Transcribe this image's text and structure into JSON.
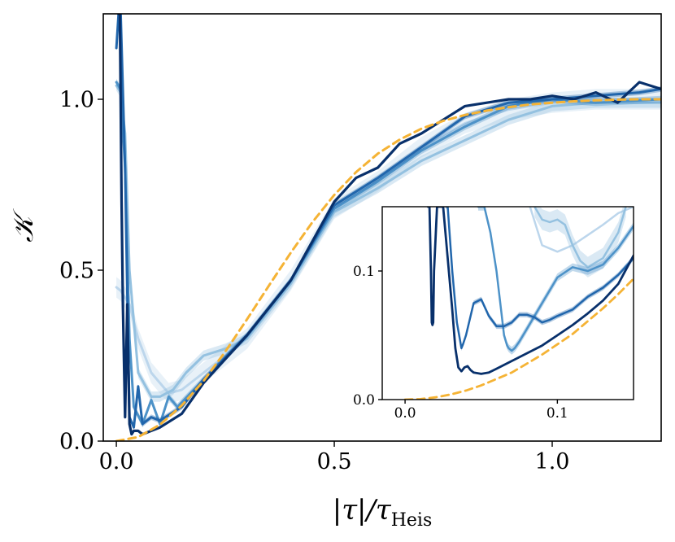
{
  "chart_data": [
    {
      "type": "line",
      "panel": "main",
      "xlabel": "|τ|/τ",
      "xlabel_sub": "Heis",
      "ylabel": "𝒦",
      "xlim": [
        -0.03,
        1.25
      ],
      "ylim": [
        0.0,
        1.25
      ],
      "xticks": [
        0.0,
        0.5,
        1.0
      ],
      "xtick_labels": [
        "0.0",
        "0.5",
        "1.0"
      ],
      "yticks": [
        0.0,
        0.5,
        1.0
      ],
      "ytick_labels": [
        "0.0",
        "0.5",
        "1.0"
      ],
      "grid": false,
      "series": [
        {
          "name": "series-1",
          "color": "#bcd6ec",
          "width": 3,
          "band": 0.03,
          "x": [
            0.0,
            0.01,
            0.03,
            0.05,
            0.08,
            0.1,
            0.12,
            0.15,
            0.2,
            0.3,
            0.4,
            0.5,
            0.6,
            0.7,
            0.8,
            0.9,
            1.0,
            1.1,
            1.25
          ],
          "y": [
            0.45,
            0.44,
            0.4,
            0.3,
            0.2,
            0.17,
            0.14,
            0.15,
            0.2,
            0.3,
            0.47,
            0.68,
            0.76,
            0.86,
            0.93,
            0.97,
            0.99,
            1.0,
            1.0
          ]
        },
        {
          "name": "series-2",
          "color": "#94c1e0",
          "width": 3,
          "band": 0.015,
          "x": [
            0.0,
            0.01,
            0.02,
            0.03,
            0.05,
            0.08,
            0.1,
            0.13,
            0.16,
            0.2,
            0.25,
            0.3,
            0.4,
            0.5,
            0.6,
            0.7,
            0.8,
            0.9,
            1.0,
            1.1,
            1.25
          ],
          "y": [
            1.04,
            1.02,
            0.9,
            0.5,
            0.2,
            0.13,
            0.13,
            0.15,
            0.2,
            0.25,
            0.27,
            0.3,
            0.46,
            0.67,
            0.74,
            0.82,
            0.88,
            0.94,
            0.98,
            0.99,
            0.99
          ]
        },
        {
          "name": "series-3",
          "color": "#4d92c8",
          "width": 3,
          "band": 0.01,
          "x": [
            0.0,
            0.01,
            0.02,
            0.03,
            0.04,
            0.06,
            0.08,
            0.1,
            0.12,
            0.14,
            0.2,
            0.3,
            0.4,
            0.5,
            0.6,
            0.7,
            0.8,
            0.9,
            1.0,
            1.1,
            1.25
          ],
          "y": [
            1.05,
            1.03,
            0.8,
            0.3,
            0.1,
            0.05,
            0.12,
            0.05,
            0.13,
            0.1,
            0.18,
            0.31,
            0.47,
            0.68,
            0.76,
            0.85,
            0.92,
            0.98,
            1.0,
            0.99,
            1.0
          ]
        },
        {
          "name": "series-4",
          "color": "#2166ac",
          "width": 3,
          "band": 0.008,
          "x": [
            0.0,
            0.005,
            0.01,
            0.02,
            0.03,
            0.04,
            0.05,
            0.06,
            0.07,
            0.08,
            0.1,
            0.15,
            0.2,
            0.3,
            0.4,
            0.5,
            0.6,
            0.7,
            0.8,
            0.9,
            1.0,
            1.1,
            1.2,
            1.25
          ],
          "y": [
            1.15,
            1.25,
            1.25,
            0.8,
            0.07,
            0.04,
            0.16,
            0.05,
            0.06,
            0.07,
            0.06,
            0.1,
            0.18,
            0.31,
            0.47,
            0.69,
            0.77,
            0.86,
            0.95,
            0.99,
            1.0,
            1.01,
            1.02,
            1.03
          ]
        },
        {
          "name": "series-5",
          "color": "#08306b",
          "width": 3.2,
          "band": 0,
          "x": [
            0.005,
            0.008,
            0.012,
            0.015,
            0.02,
            0.025,
            0.03,
            0.035,
            0.04,
            0.05,
            0.06,
            0.07,
            0.08,
            0.1,
            0.15,
            0.2,
            0.3,
            0.4,
            0.5,
            0.55,
            0.6,
            0.65,
            0.7,
            0.75,
            0.8,
            0.85,
            0.9,
            0.95,
            1.0,
            1.05,
            1.1,
            1.15,
            1.2,
            1.25
          ],
          "y": [
            1.25,
            1.25,
            0.7,
            0.4,
            0.07,
            0.4,
            0.05,
            0.02,
            0.03,
            0.03,
            0.02,
            0.025,
            0.03,
            0.04,
            0.08,
            0.17,
            0.31,
            0.47,
            0.7,
            0.77,
            0.8,
            0.87,
            0.9,
            0.94,
            0.98,
            0.99,
            1.0,
            1.0,
            1.01,
            1.0,
            1.02,
            0.99,
            1.05,
            1.03
          ]
        },
        {
          "name": "reference-curve",
          "color": "#f5b335",
          "width": 3,
          "dashed": true,
          "x": [
            0.0,
            0.05,
            0.1,
            0.15,
            0.2,
            0.25,
            0.3,
            0.35,
            0.4,
            0.45,
            0.5,
            0.55,
            0.6,
            0.65,
            0.7,
            0.75,
            0.8,
            0.85,
            0.9,
            0.95,
            1.0,
            1.05,
            1.1,
            1.15,
            1.2,
            1.25
          ],
          "y": [
            0.0,
            0.012,
            0.048,
            0.104,
            0.176,
            0.262,
            0.357,
            0.455,
            0.551,
            0.641,
            0.72,
            0.787,
            0.841,
            0.882,
            0.914,
            0.937,
            0.954,
            0.967,
            0.977,
            0.985,
            0.99,
            0.994,
            0.997,
            0.999,
            1.0,
            1.0
          ]
        }
      ]
    },
    {
      "type": "line",
      "panel": "inset",
      "xlim": [
        -0.015,
        0.15
      ],
      "ylim": [
        0.0,
        0.15
      ],
      "xticks": [
        0.0,
        0.1
      ],
      "xtick_labels": [
        "0.0",
        "0.1"
      ],
      "yticks": [
        0.0,
        0.1
      ],
      "ytick_labels": [
        "0.0",
        "0.1"
      ],
      "series": [
        {
          "name": "series-1",
          "color": "#bcd6ec",
          "width": 2.5,
          "x": [
            0.082,
            0.09,
            0.1,
            0.11,
            0.12,
            0.13,
            0.14,
            0.15
          ],
          "y": [
            0.15,
            0.12,
            0.115,
            0.12,
            0.128,
            0.136,
            0.145,
            0.15
          ]
        },
        {
          "name": "series-2",
          "color": "#94c1e0",
          "width": 2.5,
          "band": 0.008,
          "x": [
            0.085,
            0.09,
            0.095,
            0.1,
            0.105,
            0.11,
            0.115,
            0.12,
            0.13,
            0.14,
            0.145
          ],
          "y": [
            0.15,
            0.14,
            0.138,
            0.14,
            0.136,
            0.12,
            0.108,
            0.103,
            0.11,
            0.13,
            0.15
          ]
        },
        {
          "name": "series-3",
          "color": "#4d92c8",
          "width": 2.5,
          "band": 0.003,
          "x": [
            0.048,
            0.052,
            0.056,
            0.06,
            0.063,
            0.065,
            0.067,
            0.068,
            0.07,
            0.072,
            0.075,
            0.08,
            0.09,
            0.1,
            0.11,
            0.12,
            0.13,
            0.14,
            0.15
          ],
          "y": [
            0.15,
            0.15,
            0.13,
            0.1,
            0.07,
            0.05,
            0.042,
            0.04,
            0.038,
            0.04,
            0.045,
            0.055,
            0.075,
            0.095,
            0.103,
            0.1,
            0.105,
            0.118,
            0.135
          ]
        },
        {
          "name": "series-4",
          "color": "#2166ac",
          "width": 2.5,
          "band": 0.002,
          "x": [
            0.027,
            0.028,
            0.031,
            0.034,
            0.037,
            0.038,
            0.04,
            0.045,
            0.05,
            0.055,
            0.06,
            0.065,
            0.07,
            0.075,
            0.08,
            0.085,
            0.09,
            0.095,
            0.1,
            0.11,
            0.12,
            0.13,
            0.14,
            0.15
          ],
          "y": [
            0.15,
            0.15,
            0.1,
            0.06,
            0.04,
            0.043,
            0.05,
            0.075,
            0.078,
            0.065,
            0.057,
            0.057,
            0.06,
            0.066,
            0.066,
            0.064,
            0.06,
            0.062,
            0.065,
            0.07,
            0.08,
            0.087,
            0.097,
            0.11
          ]
        },
        {
          "name": "series-5",
          "color": "#08306b",
          "width": 2.8,
          "x": [
            0.015,
            0.016,
            0.017,
            0.0175,
            0.018,
            0.0185,
            0.019,
            0.021,
            0.023,
            0.025,
            0.028,
            0.031,
            0.033,
            0.035,
            0.037,
            0.039,
            0.041,
            0.043,
            0.045,
            0.05,
            0.055,
            0.06,
            0.07,
            0.08,
            0.09,
            0.1,
            0.11,
            0.12,
            0.13,
            0.14,
            0.15
          ],
          "y": [
            0.15,
            0.15,
            0.1,
            0.06,
            0.058,
            0.06,
            0.1,
            0.15,
            0.15,
            0.15,
            0.11,
            0.07,
            0.04,
            0.025,
            0.022,
            0.025,
            0.026,
            0.023,
            0.021,
            0.02,
            0.021,
            0.024,
            0.03,
            0.036,
            0.042,
            0.05,
            0.058,
            0.067,
            0.077,
            0.09,
            0.112
          ]
        },
        {
          "name": "reference-curve",
          "color": "#f5b335",
          "width": 2.8,
          "dashed": true,
          "x": [
            0.0,
            0.01,
            0.02,
            0.03,
            0.04,
            0.05,
            0.06,
            0.07,
            0.08,
            0.09,
            0.1,
            0.11,
            0.12,
            0.13,
            0.14,
            0.15
          ],
          "y": [
            0.0,
            0.0004,
            0.0018,
            0.004,
            0.007,
            0.011,
            0.016,
            0.021,
            0.028,
            0.035,
            0.043,
            0.051,
            0.061,
            0.071,
            0.082,
            0.094
          ]
        }
      ]
    }
  ]
}
